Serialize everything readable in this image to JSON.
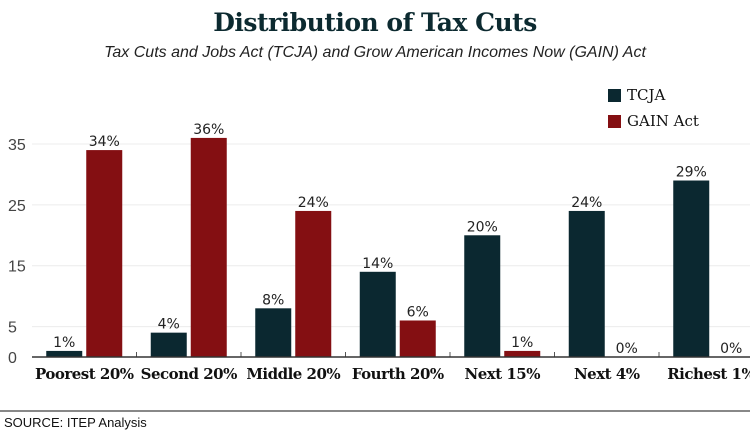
{
  "chart_data": {
    "type": "bar",
    "title": "Distribution of Tax Cuts",
    "subtitle": "Tax Cuts and Jobs Act (TCJA) and Grow American Incomes Now (GAIN) Act",
    "xlabel": "",
    "ylabel": "",
    "ylim": [
      0,
      35
    ],
    "yticks": [
      0,
      5,
      15,
      25,
      35
    ],
    "grid": true,
    "legend_position": "top-right",
    "categories": [
      "Poorest 20%",
      "Second 20%",
      "Middle 20%",
      "Fourth 20%",
      "Next 15%",
      "Next 4%",
      "Richest 1%"
    ],
    "series": [
      {
        "name": "TCJA",
        "color": "#0b2830",
        "values": [
          1,
          4,
          8,
          14,
          20,
          24,
          29
        ],
        "labels": [
          "1%",
          "4%",
          "8%",
          "14%",
          "20%",
          "24%",
          "29%"
        ]
      },
      {
        "name": "GAIN Act",
        "color": "#840f12",
        "values": [
          34,
          36,
          24,
          6,
          1,
          0,
          0
        ],
        "labels": [
          "34%",
          "36%",
          "24%",
          "6%",
          "1%",
          "0%",
          "0%"
        ]
      }
    ],
    "source": "SOURCE: ITEP Analysis"
  }
}
